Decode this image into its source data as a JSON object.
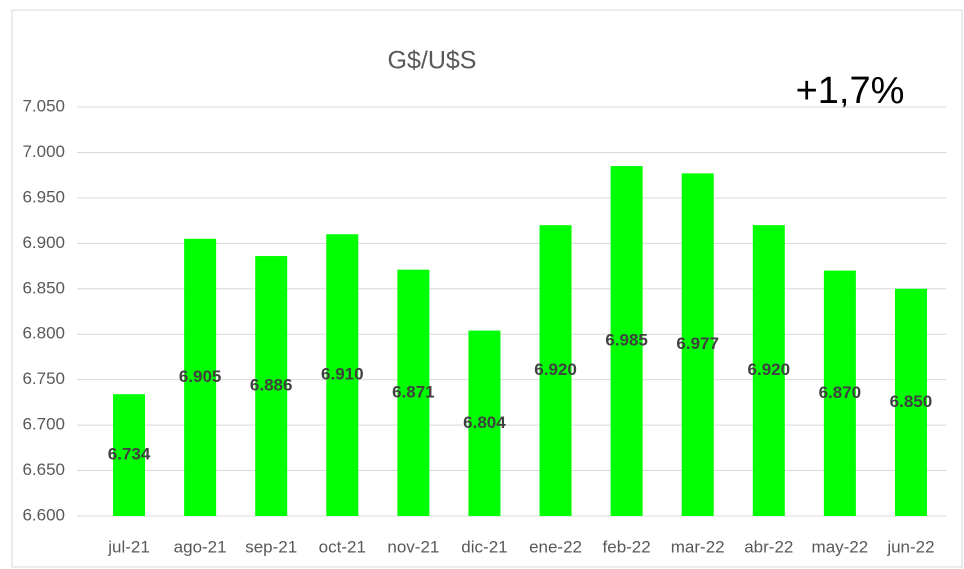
{
  "chart_data": {
    "type": "bar",
    "title": "G$/U$S",
    "annotation": "+1,7%",
    "categories": [
      "jul-21",
      "ago-21",
      "sep-21",
      "oct-21",
      "nov-21",
      "dic-21",
      "ene-22",
      "feb-22",
      "mar-22",
      "abr-22",
      "may-22",
      "jun-22"
    ],
    "values": [
      6734,
      6905,
      6886,
      6910,
      6871,
      6804,
      6920,
      6985,
      6977,
      6920,
      6870,
      6850
    ],
    "value_labels": [
      "6.734",
      "6.905",
      "6.886",
      "6.910",
      "6.871",
      "6.804",
      "6.920",
      "6.985",
      "6.977",
      "6.920",
      "6.870",
      "6.850"
    ],
    "color": "#00ff00",
    "ylim": [
      6600,
      7050
    ],
    "yticks": [
      {
        "value": 6600,
        "label": "6.600"
      },
      {
        "value": 6650,
        "label": "6.650"
      },
      {
        "value": 6700,
        "label": "6.700"
      },
      {
        "value": 6750,
        "label": "6.750"
      },
      {
        "value": 6800,
        "label": "6.800"
      },
      {
        "value": 6850,
        "label": "6.850"
      },
      {
        "value": 6900,
        "label": "6.900"
      },
      {
        "value": 6950,
        "label": "6.950"
      },
      {
        "value": 7000,
        "label": "7.000"
      },
      {
        "value": 7050,
        "label": "7.050"
      }
    ],
    "grid": true
  }
}
